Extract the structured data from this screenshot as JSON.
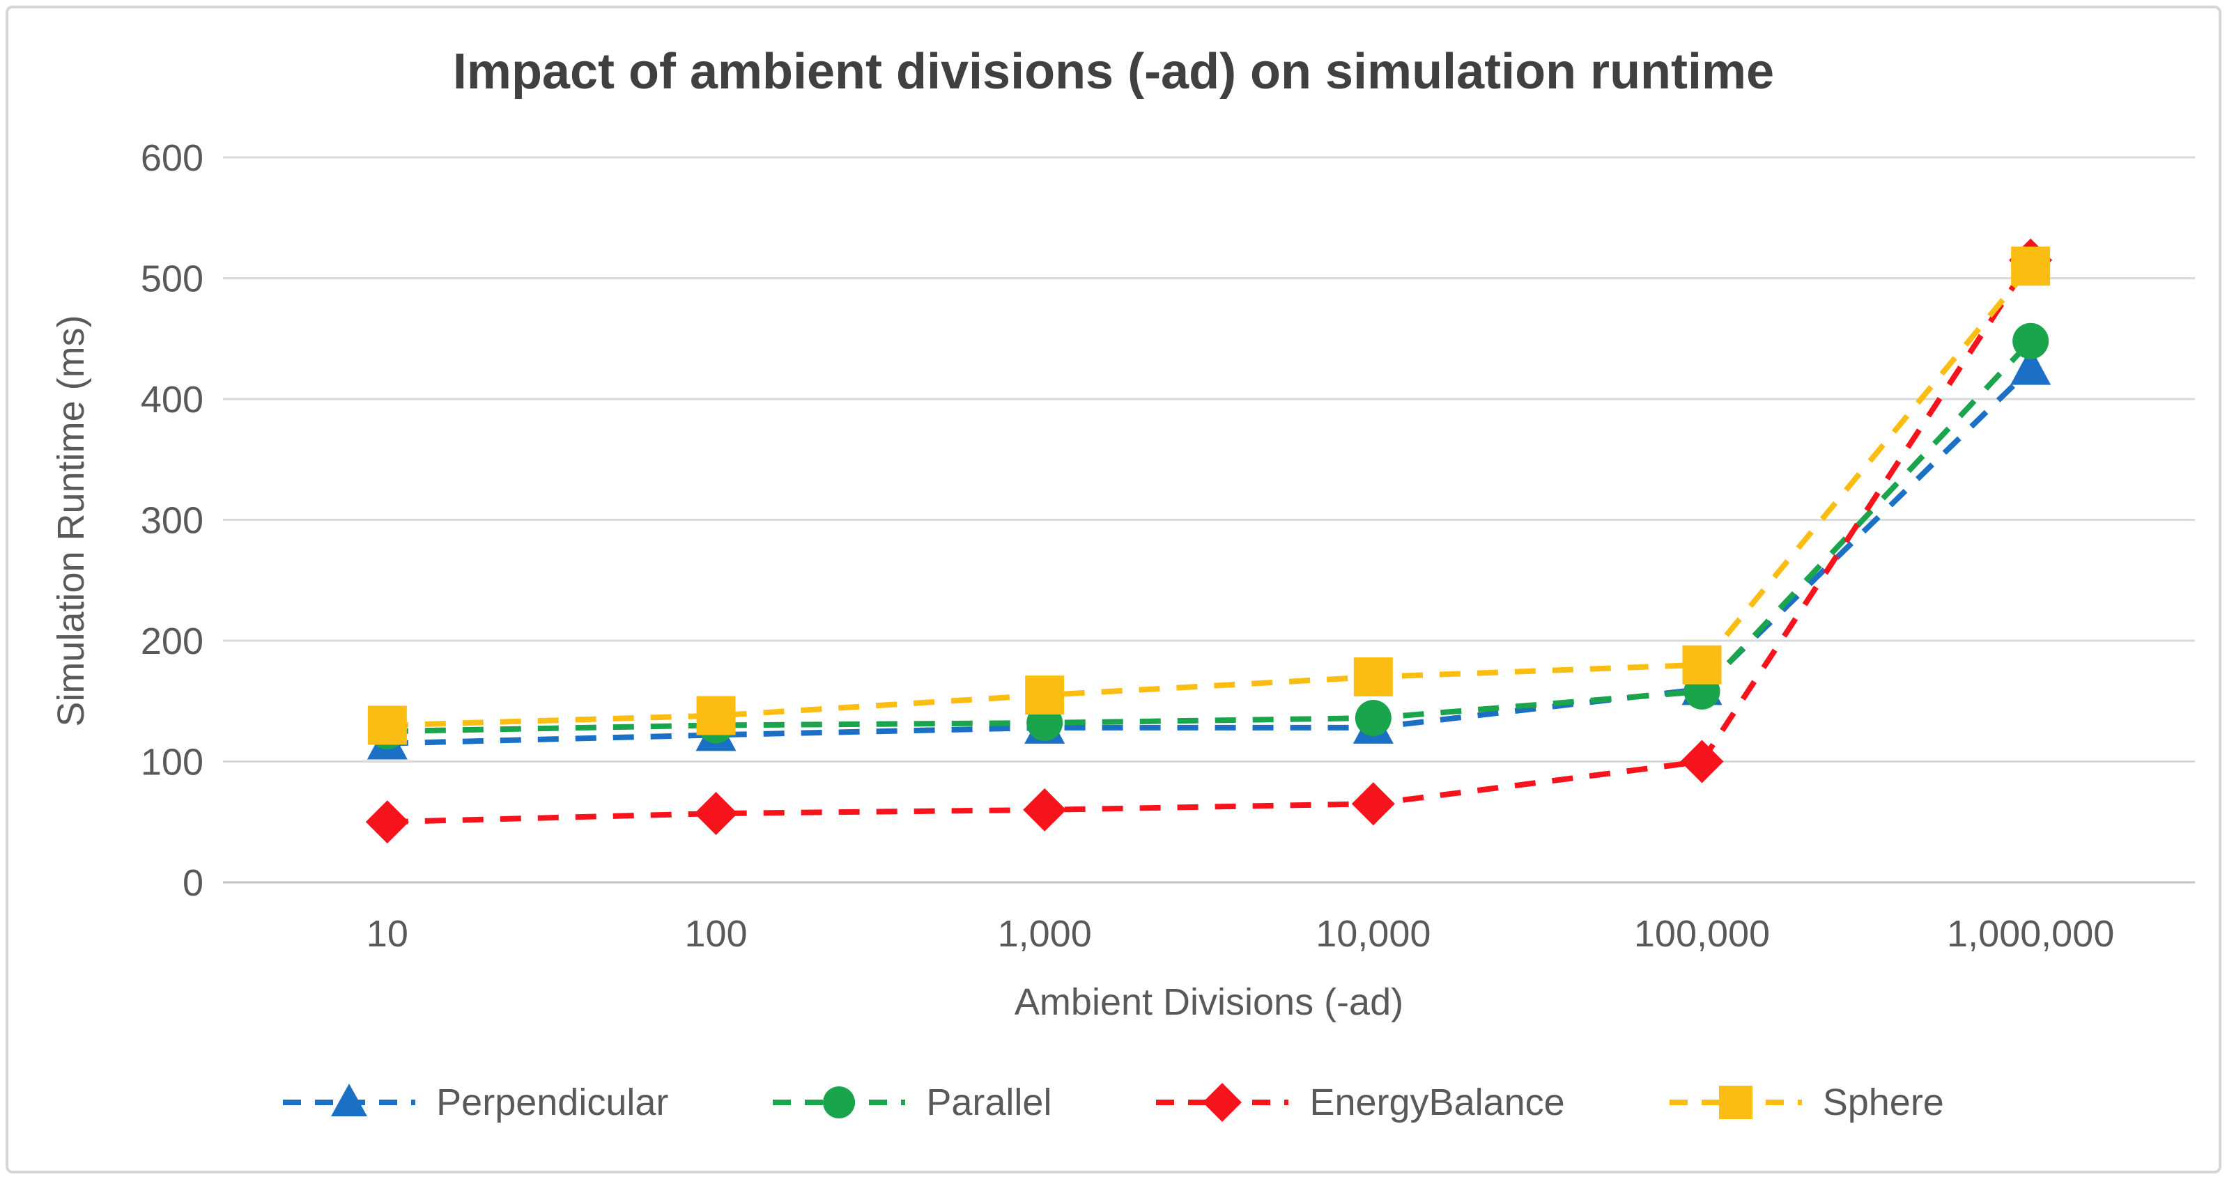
{
  "chart_data": {
    "type": "line",
    "title": "Impact of ambient divisions (-ad) on simulation runtime",
    "xlabel": "Ambient Divisions (-ad)",
    "ylabel": "Simulation Runtime (ms)",
    "categories": [
      "10",
      "100",
      "1,000",
      "10,000",
      "100,000",
      "1,000,000"
    ],
    "y_ticks": [
      0,
      100,
      200,
      300,
      400,
      500,
      600
    ],
    "ylim": [
      0,
      600
    ],
    "grid": true,
    "line_style": "dashed",
    "legend_position": "bottom",
    "series": [
      {
        "name": "Perpendicular",
        "marker": "triangle",
        "color": "#1B6FC4",
        "values": [
          115,
          122,
          128,
          128,
          160,
          425
        ]
      },
      {
        "name": "Parallel",
        "marker": "circle",
        "color": "#1AA44C",
        "values": [
          125,
          130,
          132,
          136,
          158,
          448
        ]
      },
      {
        "name": "EnergyBalance",
        "marker": "diamond",
        "color": "#F6131B",
        "values": [
          50,
          57,
          60,
          65,
          100,
          515
        ]
      },
      {
        "name": "Sphere",
        "marker": "square",
        "color": "#FCBD12",
        "values": [
          130,
          138,
          155,
          170,
          180,
          510
        ]
      }
    ]
  },
  "style": {
    "gridline_color": "#d9d9d9",
    "zero_line_color": "#c3c3c3",
    "text_color": "#595959",
    "title_color": "#404040",
    "background": "#ffffff",
    "border_color": "#d6d6d6"
  }
}
